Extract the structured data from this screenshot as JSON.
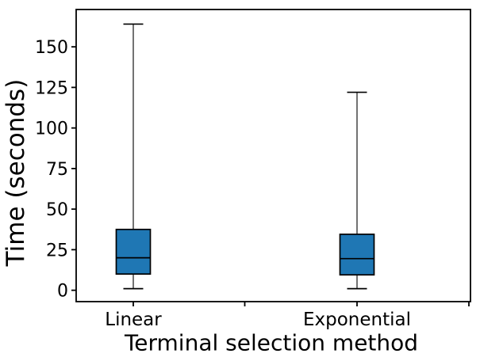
{
  "chart_data": {
    "type": "boxplot",
    "title": "",
    "xlabel": "Terminal selection method",
    "ylabel": "Time (seconds)",
    "categories": [
      "Linear",
      "Exponential"
    ],
    "series": [
      {
        "name": "Linear",
        "whisker_low": 1,
        "q1": 10,
        "median": 20,
        "q3": 37.5,
        "whisker_high": 164
      },
      {
        "name": "Exponential",
        "whisker_low": 1,
        "q1": 9.5,
        "median": 19.5,
        "q3": 34.5,
        "whisker_high": 122
      }
    ],
    "yticks": [
      0,
      25,
      50,
      75,
      100,
      125,
      150
    ],
    "ylim": [
      -7,
      173
    ],
    "xtick_labels": [
      "Linear",
      "",
      "Exponential",
      ""
    ],
    "grid": false,
    "legend": null,
    "colors": {
      "box_fill": "#1f77b4",
      "box_edge": "#000000",
      "median": "#000000",
      "whisker": "#000000",
      "axis": "#000000",
      "background": "#ffffff"
    }
  }
}
